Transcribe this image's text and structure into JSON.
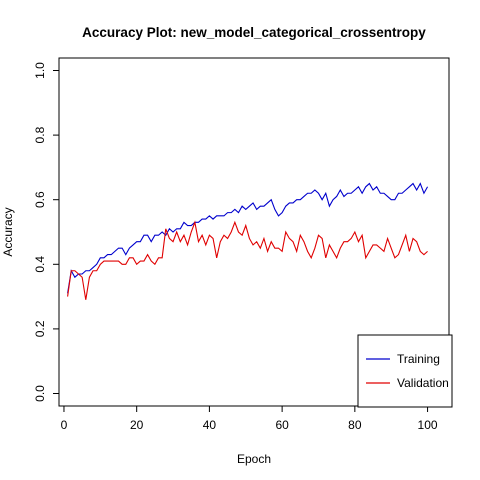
{
  "chart_data": {
    "type": "line",
    "title": "Accuracy Plot: new_model_categorical_crossentropy",
    "xlabel": "Epoch",
    "ylabel": "Accuracy",
    "xlim": [
      1,
      100
    ],
    "ylim": [
      0,
      1
    ],
    "x_ticks": [
      "0",
      "20",
      "40",
      "60",
      "80",
      "100"
    ],
    "y_ticks": [
      "0.0",
      "0.2",
      "0.4",
      "0.6",
      "0.8",
      "1.0"
    ],
    "grid": false,
    "legend_position": "bottom-right",
    "series": [
      {
        "name": "Training",
        "color": "#0000cd",
        "values": [
          0.31,
          0.38,
          0.36,
          0.37,
          0.37,
          0.38,
          0.38,
          0.39,
          0.4,
          0.42,
          0.42,
          0.43,
          0.43,
          0.44,
          0.45,
          0.45,
          0.43,
          0.45,
          0.46,
          0.47,
          0.47,
          0.49,
          0.49,
          0.47,
          0.49,
          0.49,
          0.5,
          0.49,
          0.51,
          0.5,
          0.51,
          0.51,
          0.53,
          0.52,
          0.52,
          0.53,
          0.53,
          0.54,
          0.54,
          0.55,
          0.54,
          0.55,
          0.55,
          0.55,
          0.56,
          0.56,
          0.57,
          0.56,
          0.58,
          0.57,
          0.58,
          0.59,
          0.57,
          0.58,
          0.58,
          0.59,
          0.6,
          0.57,
          0.55,
          0.56,
          0.58,
          0.59,
          0.59,
          0.6,
          0.6,
          0.61,
          0.62,
          0.62,
          0.63,
          0.62,
          0.6,
          0.62,
          0.58,
          0.6,
          0.61,
          0.63,
          0.61,
          0.62,
          0.62,
          0.63,
          0.64,
          0.62,
          0.64,
          0.65,
          0.63,
          0.64,
          0.62,
          0.62,
          0.61,
          0.6,
          0.6,
          0.62,
          0.62,
          0.63,
          0.64,
          0.65,
          0.63,
          0.65,
          0.62,
          0.64
        ]
      },
      {
        "name": "Validation",
        "color": "#e00000",
        "values": [
          0.3,
          0.38,
          0.38,
          0.37,
          0.36,
          0.29,
          0.36,
          0.38,
          0.38,
          0.4,
          0.41,
          0.41,
          0.41,
          0.41,
          0.41,
          0.4,
          0.4,
          0.42,
          0.42,
          0.4,
          0.41,
          0.41,
          0.43,
          0.41,
          0.4,
          0.42,
          0.42,
          0.51,
          0.48,
          0.47,
          0.5,
          0.47,
          0.49,
          0.46,
          0.5,
          0.53,
          0.47,
          0.49,
          0.46,
          0.49,
          0.48,
          0.42,
          0.47,
          0.49,
          0.48,
          0.5,
          0.53,
          0.5,
          0.49,
          0.52,
          0.48,
          0.46,
          0.47,
          0.45,
          0.48,
          0.44,
          0.47,
          0.45,
          0.45,
          0.44,
          0.5,
          0.48,
          0.47,
          0.44,
          0.49,
          0.47,
          0.44,
          0.42,
          0.45,
          0.49,
          0.48,
          0.42,
          0.46,
          0.44,
          0.42,
          0.45,
          0.47,
          0.47,
          0.48,
          0.5,
          0.47,
          0.49,
          0.42,
          0.44,
          0.46,
          0.46,
          0.45,
          0.44,
          0.48,
          0.45,
          0.42,
          0.43,
          0.46,
          0.49,
          0.44,
          0.48,
          0.47,
          0.44,
          0.43,
          0.44
        ]
      }
    ]
  }
}
